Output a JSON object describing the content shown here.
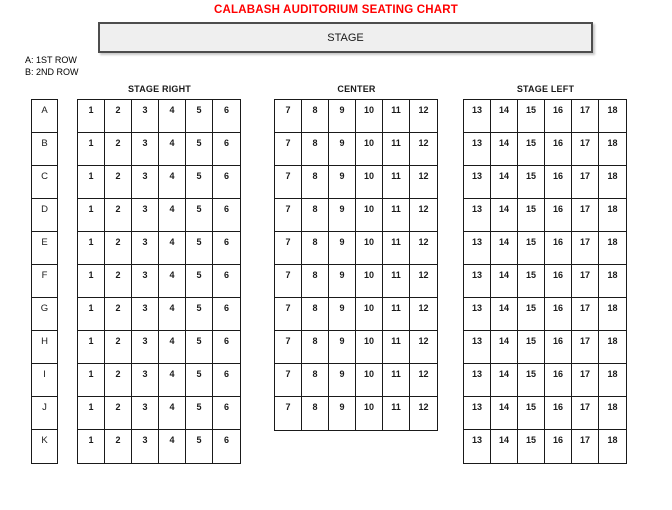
{
  "title": "CALABASH AUDITORIUM SEATING CHART",
  "stage": {
    "label": "STAGE"
  },
  "legend": {
    "line1": "A: 1ST ROW",
    "line2": "B: 2ND ROW"
  },
  "row_labels": [
    "A",
    "B",
    "C",
    "D",
    "E",
    "F",
    "G",
    "H",
    "I",
    "J",
    "K"
  ],
  "sections": [
    {
      "name": "STAGE RIGHT",
      "seats": [
        "1",
        "2",
        "3",
        "4",
        "5",
        "6"
      ],
      "rows": 11
    },
    {
      "name": "CENTER",
      "seats": [
        "7",
        "8",
        "9",
        "10",
        "11",
        "12"
      ],
      "rows": 10
    },
    {
      "name": "STAGE LEFT",
      "seats": [
        "13",
        "14",
        "15",
        "16",
        "17",
        "18"
      ],
      "rows": 11
    }
  ],
  "colors": {
    "title_red": "#FF0000",
    "stage_fill": "#EFEFEF",
    "grid_border": "#1A1A1A"
  }
}
